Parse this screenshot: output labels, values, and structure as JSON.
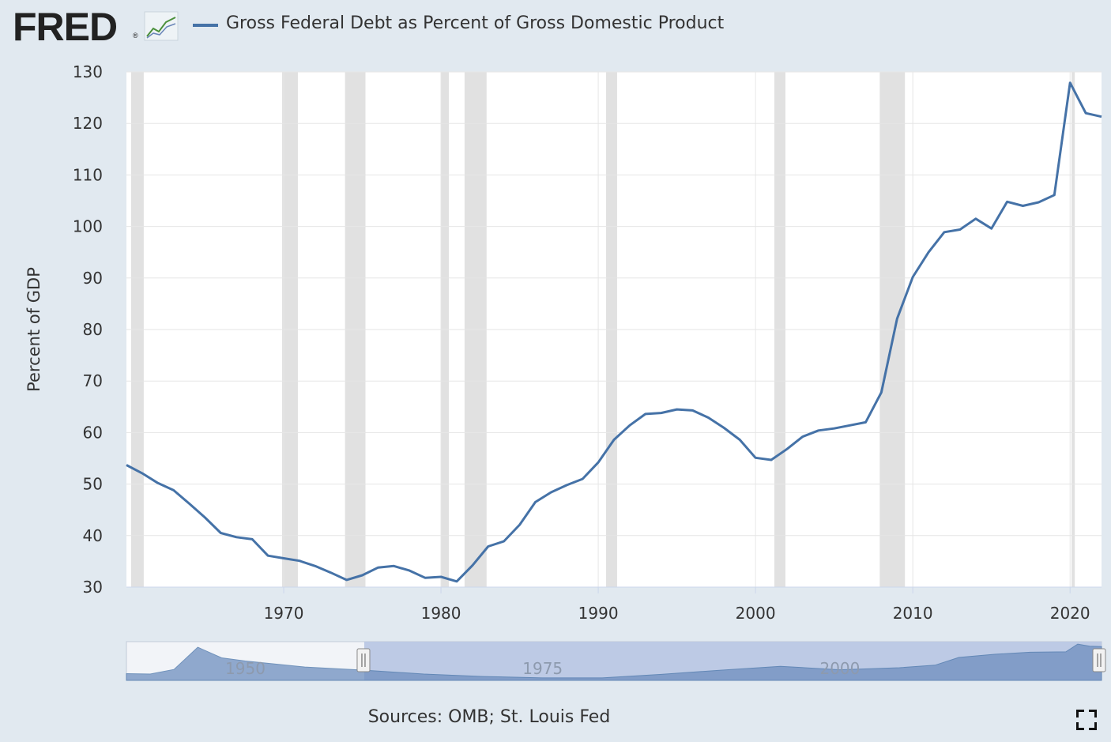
{
  "header": {
    "logo_text": "FRED",
    "logo_reg": "®",
    "legend_label": "Gross Federal Debt as Percent of Gross Domestic Product"
  },
  "footer": {
    "sources": "Sources: OMB; St. Louis Fed"
  },
  "colors": {
    "series": "#4572a7",
    "recession": "#e1e1e1",
    "background": "#e1e9f0",
    "plot_bg": "#ffffff",
    "grid": "#e6e6e6",
    "navigator_fill": "#6f8fbf",
    "navigator_selected": "#b9c7e4"
  },
  "chart_data": {
    "type": "line",
    "title": "Gross Federal Debt as Percent of Gross Domestic Product",
    "ylabel": "Percent of GDP",
    "xlabel": "",
    "xlim": [
      1960,
      2022
    ],
    "ylim": [
      30,
      130
    ],
    "xticks": [
      1970,
      1980,
      1990,
      2000,
      2010,
      2020
    ],
    "yticks": [
      30,
      40,
      50,
      60,
      70,
      80,
      90,
      100,
      110,
      120,
      130
    ],
    "grid": true,
    "series": [
      {
        "name": "Gross Federal Debt as Percent of Gross Domestic Product",
        "x": [
          1960,
          1961,
          1962,
          1963,
          1964,
          1965,
          1966,
          1967,
          1968,
          1969,
          1970,
          1971,
          1972,
          1973,
          1974,
          1975,
          1976,
          1977,
          1978,
          1979,
          1980,
          1981,
          1982,
          1983,
          1984,
          1985,
          1986,
          1987,
          1988,
          1989,
          1990,
          1991,
          1992,
          1993,
          1994,
          1995,
          1996,
          1997,
          1998,
          1999,
          2000,
          2001,
          2002,
          2003,
          2004,
          2005,
          2006,
          2007,
          2008,
          2009,
          2010,
          2011,
          2012,
          2013,
          2014,
          2015,
          2016,
          2017,
          2018,
          2019,
          2020,
          2021,
          2022
        ],
        "values": [
          53.7,
          52.1,
          50.2,
          48.8,
          46.2,
          43.5,
          40.5,
          39.7,
          39.3,
          36.1,
          35.6,
          35.1,
          34.1,
          32.8,
          31.4,
          32.3,
          33.8,
          34.1,
          33.2,
          31.8,
          32.0,
          31.1,
          34.2,
          37.9,
          38.9,
          42.1,
          46.5,
          48.4,
          49.8,
          51.0,
          54.2,
          58.6,
          61.4,
          63.6,
          63.8,
          64.5,
          64.3,
          62.9,
          60.9,
          58.6,
          55.1,
          54.7,
          56.8,
          59.2,
          60.4,
          60.8,
          61.4,
          62.0,
          67.8,
          82.1,
          90.2,
          95.0,
          98.9,
          99.4,
          101.5,
          99.6,
          104.8,
          104.0,
          104.7,
          106.1,
          127.9,
          122.0,
          121.3
        ]
      }
    ],
    "recessions": [
      [
        1960.3,
        1961.1
      ],
      [
        1969.9,
        1970.9
      ],
      [
        1973.9,
        1975.2
      ],
      [
        1980.0,
        1980.5
      ],
      [
        1981.5,
        1982.9
      ],
      [
        1990.5,
        1991.2
      ],
      [
        2001.2,
        2001.9
      ],
      [
        2007.9,
        2009.5
      ],
      [
        2020.1,
        2020.3
      ]
    ],
    "navigator": {
      "tick_labels": [
        "1950",
        "1975",
        "2000"
      ],
      "tick_years": [
        1950,
        1975,
        2000
      ],
      "range": [
        1940,
        2022
      ],
      "selected": [
        1960,
        2022
      ],
      "values": [
        [
          1940,
          44
        ],
        [
          1942,
          43
        ],
        [
          1944,
          56
        ],
        [
          1946,
          119
        ],
        [
          1948,
          89
        ],
        [
          1950,
          80
        ],
        [
          1955,
          63
        ],
        [
          1960,
          54
        ],
        [
          1965,
          43
        ],
        [
          1970,
          36
        ],
        [
          1975,
          32
        ],
        [
          1980,
          32
        ],
        [
          1985,
          42
        ],
        [
          1990,
          54
        ],
        [
          1995,
          65
        ],
        [
          2000,
          55
        ],
        [
          2005,
          61
        ],
        [
          2008,
          68
        ],
        [
          2010,
          90
        ],
        [
          2013,
          99
        ],
        [
          2016,
          105
        ],
        [
          2019,
          106
        ],
        [
          2020,
          128
        ],
        [
          2021,
          122
        ],
        [
          2022,
          121
        ]
      ],
      "ylim": [
        25,
        135
      ]
    }
  }
}
